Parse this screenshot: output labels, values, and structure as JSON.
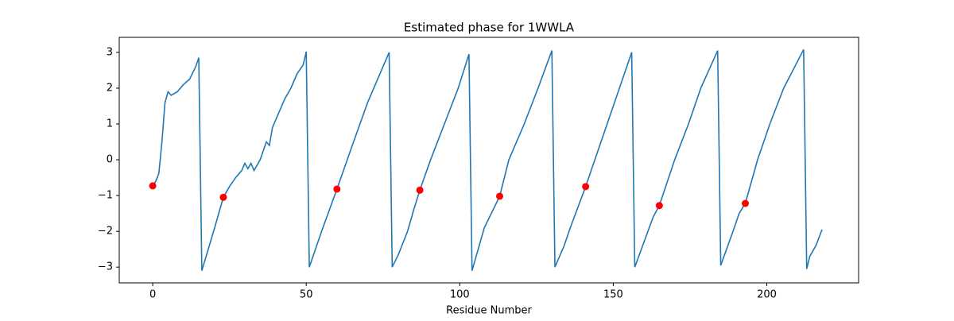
{
  "chart_data": {
    "type": "line",
    "title": "Estimated phase for 1WWLA",
    "x_label": "Residue Number",
    "xlim": [
      -10.9,
      229.9
    ],
    "xticks": [
      0,
      50,
      100,
      150,
      200
    ],
    "ylim": [
      -3.44,
      3.42
    ],
    "yticks": [
      {
        "value": -3,
        "label": "−3"
      },
      {
        "value": -2,
        "label": "−2"
      },
      {
        "value": -1,
        "label": "−1"
      },
      0,
      1,
      2,
      3
    ],
    "series": [
      {
        "color": "#1f77b4",
        "line": true,
        "marker": false,
        "x": [
          0,
          1,
          2,
          3,
          4,
          5,
          6,
          8,
          10,
          12,
          14,
          15,
          16,
          20,
          23,
          25,
          27,
          29,
          30,
          31,
          32,
          33,
          35,
          37,
          38,
          39,
          41,
          43,
          45,
          47,
          49,
          50,
          51,
          55,
          60,
          65,
          70,
          74,
          77,
          78,
          80,
          83,
          85,
          87,
          90.5,
          95,
          99.5,
          103,
          104,
          108,
          113,
          116,
          121,
          125.5,
          130,
          131,
          134,
          136,
          141,
          144,
          148,
          152,
          156,
          157,
          160,
          163,
          165,
          170,
          174.5,
          178.5,
          184,
          185,
          189,
          191,
          193,
          197,
          201,
          205.5,
          212,
          213,
          214,
          216,
          218
        ],
        "values": [
          -0.73,
          -0.6,
          -0.38,
          0.5,
          1.6,
          1.9,
          1.8,
          1.9,
          2.1,
          2.25,
          2.6,
          2.85,
          -3.1,
          -1.95,
          -1.05,
          -0.75,
          -0.5,
          -0.3,
          -0.1,
          -0.25,
          -0.1,
          -0.3,
          0,
          0.5,
          0.4,
          0.9,
          1.3,
          1.7,
          2.0,
          2.4,
          2.65,
          3.02,
          -3.0,
          -2.0,
          -0.82,
          0.4,
          1.6,
          2.4,
          3.0,
          -3.0,
          -2.65,
          -2.0,
          -1.4,
          -0.85,
          0,
          1,
          2,
          2.95,
          -3.1,
          -1.9,
          -1.02,
          0,
          1,
          2,
          3.05,
          -3.0,
          -2.4,
          -1.9,
          -0.75,
          0,
          1,
          2,
          3.0,
          -3.0,
          -2.3,
          -1.6,
          -1.28,
          0,
          1,
          2,
          3.05,
          -2.95,
          -2.0,
          -1.5,
          -1.22,
          0,
          1,
          2,
          3.08,
          -3.05,
          -2.7,
          -2.4,
          -1.95
        ]
      },
      {
        "color": "#ff0000",
        "line": false,
        "marker": true,
        "x": [
          0,
          23,
          60,
          87,
          113,
          141,
          165,
          193
        ],
        "values": [
          -0.73,
          -1.05,
          -0.82,
          -0.85,
          -1.02,
          -0.75,
          -1.28,
          -1.22
        ]
      }
    ]
  }
}
